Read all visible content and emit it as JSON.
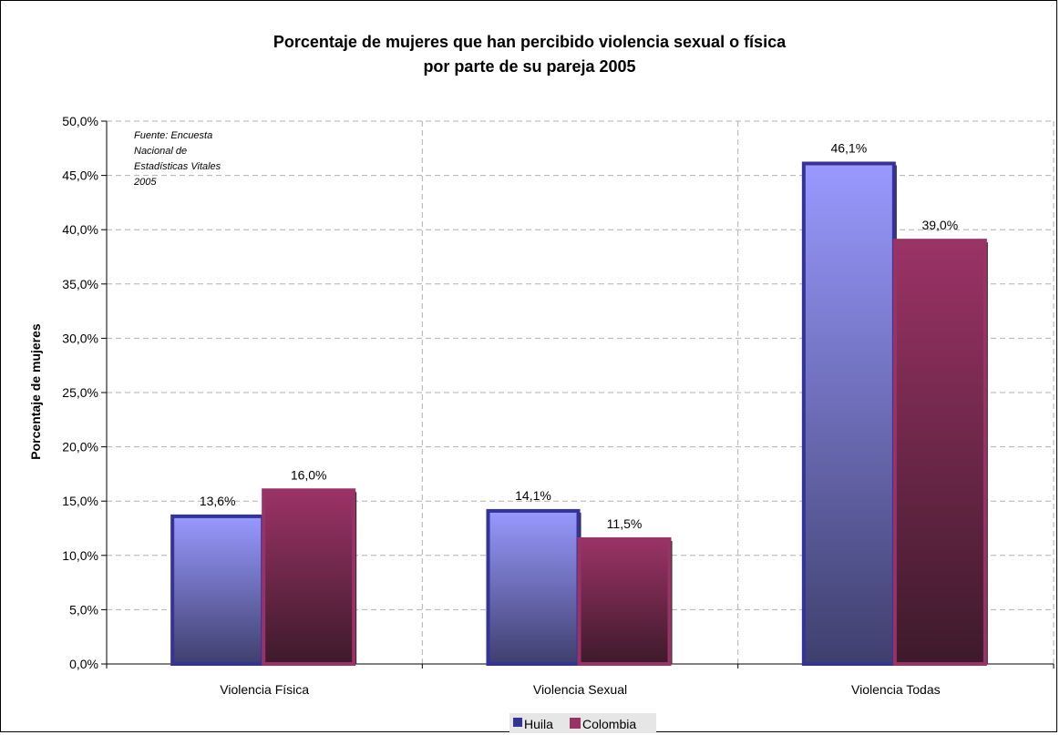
{
  "chart_data": {
    "type": "bar",
    "title": "Porcentaje de mujeres que han percibido violencia sexual o física",
    "subtitle": "por parte de su pareja 2005",
    "ylabel": "Porcentaje de mujeres",
    "xlabel": "",
    "categories": [
      "Violencia Física",
      "Violencia Sexual",
      "Violencia Todas"
    ],
    "series": [
      {
        "name": "Huila",
        "values": [
          13.6,
          14.1,
          46.1
        ],
        "labels": [
          "13,6%",
          "14,1%",
          "46,1%"
        ],
        "color": "#333399",
        "fill_top": "#9999ff",
        "fill_bottom": "#3f3f6e"
      },
      {
        "name": "Colombia",
        "values": [
          16.0,
          11.5,
          39.0
        ],
        "labels": [
          "16,0%",
          "11,5%",
          "39,0%"
        ],
        "color": "#993366",
        "fill_top": "#9b3366",
        "fill_bottom": "#3d1a2b"
      }
    ],
    "ylim": [
      0,
      50
    ],
    "yticks": [
      "0,0%",
      "5,0%",
      "10,0%",
      "15,0%",
      "20,0%",
      "25,0%",
      "30,0%",
      "35,0%",
      "40,0%",
      "45,0%",
      "50,0%"
    ],
    "grid": true,
    "legend_position": "bottom",
    "annotation": [
      "Fuente:  Encuesta",
      "Nacional de",
      "Estadísticas Vitales",
      "2005"
    ]
  }
}
